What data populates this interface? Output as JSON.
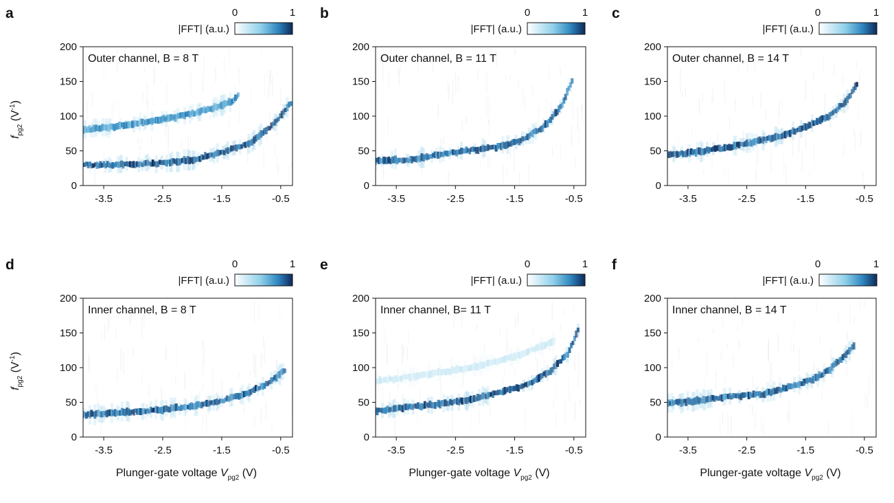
{
  "colors": {
    "map_low": "#ffffff",
    "map_mid": "#3a9fcf",
    "map_high": "#0d2a5a",
    "axis": "#111111"
  },
  "colorbar": {
    "label": "|FFT| (a.u.)",
    "min_label": "0",
    "max_label": "1"
  },
  "axes": {
    "y_title_main": "f",
    "y_title_sub": "pg2",
    "y_title_unit": " (V",
    "y_title_sup": "-1",
    "y_title_close": ")",
    "x_title_main": "Plunger-gate voltage ",
    "x_title_var": "V",
    "x_title_sub": "pg2",
    "x_title_unit": " (V)"
  },
  "chart_data": [
    {
      "type": "heatmap",
      "panel": "a",
      "inset_label": "Outer channel, B = 8 T",
      "x_range": [
        -3.85,
        -0.3
      ],
      "y_range": [
        0,
        200
      ],
      "xticks": [
        "-3.5",
        "-2.5",
        "-1.5",
        "-0.5"
      ],
      "xtick_values": [
        -3.5,
        -2.5,
        -1.5,
        -0.5
      ],
      "yticks": [
        "0",
        "50",
        "100",
        "150",
        "200"
      ],
      "ytick_values": [
        0,
        50,
        100,
        150,
        200
      ],
      "colorbar_range": [
        0,
        1
      ],
      "ridges": [
        {
          "intensity": 0.85,
          "points": [
            [
              -3.85,
              30
            ],
            [
              -3.2,
              30
            ],
            [
              -2.6,
              32
            ],
            [
              -2.0,
              37
            ],
            [
              -1.5,
              47
            ],
            [
              -1.0,
              62
            ],
            [
              -0.6,
              90
            ],
            [
              -0.3,
              122
            ]
          ]
        },
        {
          "intensity": 0.6,
          "points": [
            [
              -3.85,
              80
            ],
            [
              -3.3,
              85
            ],
            [
              -2.8,
              92
            ],
            [
              -2.2,
              100
            ],
            [
              -1.7,
              110
            ],
            [
              -1.3,
              122
            ],
            [
              -1.2,
              132
            ]
          ]
        }
      ]
    },
    {
      "type": "heatmap",
      "panel": "b",
      "inset_label": "Outer channel, B = 11 T",
      "x_range": [
        -3.85,
        -0.3
      ],
      "y_range": [
        0,
        200
      ],
      "xticks": [
        "-3.5",
        "-2.5",
        "-1.5",
        "-0.5"
      ],
      "xtick_values": [
        -3.5,
        -2.5,
        -1.5,
        -0.5
      ],
      "yticks": [
        "0",
        "50",
        "100",
        "150",
        "200"
      ],
      "ytick_values": [
        0,
        50,
        100,
        150,
        200
      ],
      "colorbar_range": [
        0,
        1
      ],
      "ridges": [
        {
          "intensity": 0.8,
          "points": [
            [
              -3.85,
              36
            ],
            [
              -3.2,
              37
            ],
            [
              -2.8,
              45
            ],
            [
              -2.3,
              50
            ],
            [
              -1.8,
              55
            ],
            [
              -1.4,
              65
            ],
            [
              -1.0,
              85
            ],
            [
              -0.7,
              115
            ],
            [
              -0.5,
              158
            ]
          ]
        }
      ]
    },
    {
      "type": "heatmap",
      "panel": "c",
      "inset_label": "Outer channel, B = 14 T",
      "x_range": [
        -3.85,
        -0.3
      ],
      "y_range": [
        0,
        200
      ],
      "xticks": [
        "-3.5",
        "-2.5",
        "-1.5",
        "-0.5"
      ],
      "xtick_values": [
        -3.5,
        -2.5,
        -1.5,
        -0.5
      ],
      "yticks": [
        "0",
        "50",
        "100",
        "150",
        "200"
      ],
      "ytick_values": [
        0,
        50,
        100,
        150,
        200
      ],
      "colorbar_range": [
        0,
        1
      ],
      "ridges": [
        {
          "intensity": 0.85,
          "points": [
            [
              -3.85,
              44
            ],
            [
              -3.4,
              48
            ],
            [
              -2.9,
              54
            ],
            [
              -2.4,
              62
            ],
            [
              -1.9,
              72
            ],
            [
              -1.5,
              85
            ],
            [
              -1.1,
              100
            ],
            [
              -0.8,
              122
            ],
            [
              -0.6,
              150
            ]
          ]
        }
      ]
    },
    {
      "type": "heatmap",
      "panel": "d",
      "inset_label": "Inner channel, B = 8 T",
      "x_range": [
        -3.85,
        -0.3
      ],
      "y_range": [
        0,
        200
      ],
      "xticks": [
        "-3.5",
        "-2.5",
        "-1.5",
        "-0.5"
      ],
      "xtick_values": [
        -3.5,
        -2.5,
        -1.5,
        -0.5
      ],
      "yticks": [
        "0",
        "50",
        "100",
        "150",
        "200"
      ],
      "ytick_values": [
        0,
        50,
        100,
        150,
        200
      ],
      "colorbar_range": [
        0,
        1
      ],
      "ridges": [
        {
          "intensity": 0.8,
          "points": [
            [
              -3.85,
              32
            ],
            [
              -3.3,
              35
            ],
            [
              -2.7,
              38
            ],
            [
              -2.1,
              43
            ],
            [
              -1.6,
              50
            ],
            [
              -1.1,
              62
            ],
            [
              -0.7,
              78
            ],
            [
              -0.4,
              98
            ]
          ]
        }
      ]
    },
    {
      "type": "heatmap",
      "panel": "e",
      "inset_label": "Inner channel, B= 11 T",
      "x_range": [
        -3.85,
        -0.3
      ],
      "y_range": [
        0,
        200
      ],
      "xticks": [
        "-3.5",
        "-2.5",
        "-1.5",
        "-0.5"
      ],
      "xtick_values": [
        -3.5,
        -2.5,
        -1.5,
        -0.5
      ],
      "yticks": [
        "0",
        "50",
        "100",
        "150",
        "200"
      ],
      "ytick_values": [
        0,
        50,
        100,
        150,
        200
      ],
      "colorbar_range": [
        0,
        1
      ],
      "ridges": [
        {
          "intensity": 0.85,
          "points": [
            [
              -3.85,
              38
            ],
            [
              -3.3,
              43
            ],
            [
              -2.7,
              48
            ],
            [
              -2.2,
              55
            ],
            [
              -1.7,
              65
            ],
            [
              -1.3,
              75
            ],
            [
              -0.9,
              95
            ],
            [
              -0.6,
              120
            ],
            [
              -0.4,
              160
            ]
          ]
        },
        {
          "intensity": 0.15,
          "points": [
            [
              -3.85,
              80
            ],
            [
              -3.0,
              90
            ],
            [
              -2.2,
              100
            ],
            [
              -1.4,
              118
            ],
            [
              -0.8,
              140
            ]
          ]
        }
      ]
    },
    {
      "type": "heatmap",
      "panel": "f",
      "inset_label": "Inner channel, B = 14 T",
      "x_range": [
        -3.85,
        -0.3
      ],
      "y_range": [
        0,
        200
      ],
      "xticks": [
        "-3.5",
        "-2.5",
        "-1.5",
        "-0.5"
      ],
      "xtick_values": [
        -3.5,
        -2.5,
        -1.5,
        -0.5
      ],
      "yticks": [
        "0",
        "50",
        "100",
        "150",
        "200"
      ],
      "ytick_values": [
        0,
        50,
        100,
        150,
        200
      ],
      "colorbar_range": [
        0,
        1
      ],
      "ridges": [
        {
          "intensity": 0.8,
          "points": [
            [
              -3.85,
              48
            ],
            [
              -3.3,
              53
            ],
            [
              -2.8,
              58
            ],
            [
              -2.2,
              62
            ],
            [
              -1.8,
              72
            ],
            [
              -1.4,
              82
            ],
            [
              -1.1,
              96
            ],
            [
              -0.8,
              120
            ],
            [
              -0.65,
              135
            ]
          ]
        }
      ]
    }
  ]
}
